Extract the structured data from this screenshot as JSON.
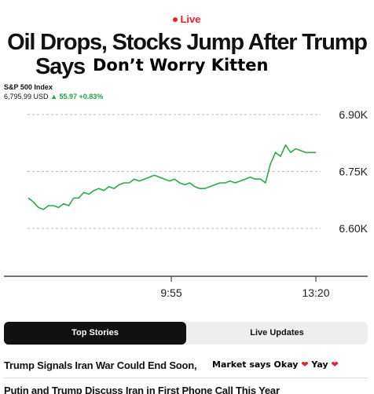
{
  "live_label": "Live",
  "headline": {
    "line1": "Oil Drops, Stocks Jump After Trump",
    "line2": "Says",
    "overlay_text": "Don’t Worry Kitten"
  },
  "index": {
    "name": "S&P 500 Index",
    "price": "6,795.99 USD",
    "change": "▲ 55.97 +0.83%"
  },
  "chart_data": {
    "type": "line",
    "x_ticks": [
      "9:55",
      "13:20"
    ],
    "y_ticks": [
      "6.90K",
      "6.75K",
      "6.60K"
    ],
    "ylim": [
      6.6,
      6.9
    ],
    "values": [
      6.68,
      6.67,
      6.655,
      6.65,
      6.66,
      6.66,
      6.655,
      6.665,
      6.66,
      6.68,
      6.68,
      6.695,
      6.69,
      6.7,
      6.705,
      6.7,
      6.71,
      6.705,
      6.715,
      6.72,
      6.72,
      6.73,
      6.725,
      6.73,
      6.735,
      6.74,
      6.735,
      6.73,
      6.725,
      6.73,
      6.72,
      6.715,
      6.72,
      6.71,
      6.705,
      6.705,
      6.71,
      6.715,
      6.72,
      6.72,
      6.725,
      6.72,
      6.725,
      6.73,
      6.735,
      6.73,
      6.73,
      6.72,
      6.77,
      6.8,
      6.79,
      6.82,
      6.8,
      6.81,
      6.805,
      6.8,
      6.8,
      6.8
    ],
    "line_color": "#2fa84f",
    "grid": true
  },
  "tabs": [
    {
      "label": "Top Stories",
      "active": true
    },
    {
      "label": "Live Updates",
      "active": false
    }
  ],
  "stories": {
    "first_title": "Trump Signals Iran War Could End Soon,",
    "first_note_a": "Market says Okay",
    "first_note_b": "Yay",
    "second_title": "Putin and Trump Discuss Iran in First Phone Call This Year"
  },
  "colors": {
    "live_red": "#e8202a",
    "up_green": "#2e9d49",
    "heart": "#e02435"
  }
}
